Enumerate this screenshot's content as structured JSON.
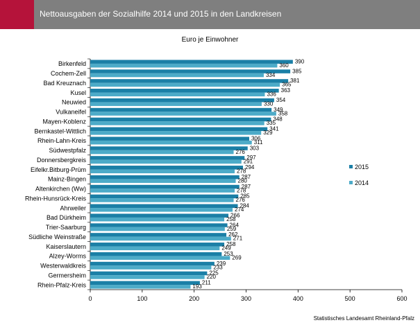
{
  "header": {
    "title": "Nettoausgaben der Sozialhilfe 2014 und 2015 in den Landkreisen",
    "accent_color": "#b5133a",
    "bar_color": "#7f7f7f"
  },
  "footer": {
    "source": "Statistisches Landesamt Rheinland-Pfalz"
  },
  "chart_data": {
    "type": "bar",
    "orientation": "horizontal",
    "title": "",
    "subtitle": "Euro je Einwohner",
    "xlabel": "",
    "ylabel": "",
    "xlim": [
      0,
      600
    ],
    "xticks": [
      0,
      100,
      200,
      300,
      400,
      500,
      600
    ],
    "grid": false,
    "legend_position": "right",
    "categories": [
      "Birkenfeld",
      "Cochem-Zell",
      "Bad Kreuznach",
      "Kusel",
      "Neuwied",
      "Vulkaneifel",
      "Mayen-Koblenz",
      "Bernkastel-Wittlich",
      "Rhein-Lahn-Kreis",
      "Südwestpfalz",
      "Donnersbergkreis",
      "Eifelkr.Bitburg-Prüm",
      "Mainz-Bingen",
      "Altenkirchen (Ww)",
      "Rhein-Hunsrück-Kreis",
      "Ahrweiler",
      "Bad Dürkheim",
      "Trier-Saarburg",
      "Südliche Weinstraße",
      "Kaiserslautern",
      "Alzey-Worms",
      "Westerwaldkreis",
      "Germersheim",
      "Rhein-Pfalz-Kreis"
    ],
    "series": [
      {
        "name": "2015",
        "color": "#1b7fa6",
        "values": [
          390,
          385,
          381,
          363,
          354,
          349,
          348,
          341,
          306,
          303,
          297,
          294,
          287,
          287,
          285,
          284,
          266,
          264,
          262,
          258,
          253,
          239,
          225,
          211
        ]
      },
      {
        "name": "2014",
        "color": "#4dabc8",
        "values": [
          360,
          334,
          365,
          336,
          330,
          358,
          335,
          329,
          311,
          276,
          291,
          278,
          280,
          278,
          276,
          274,
          258,
          259,
          271,
          249,
          269,
          233,
          220,
          193
        ]
      }
    ]
  }
}
